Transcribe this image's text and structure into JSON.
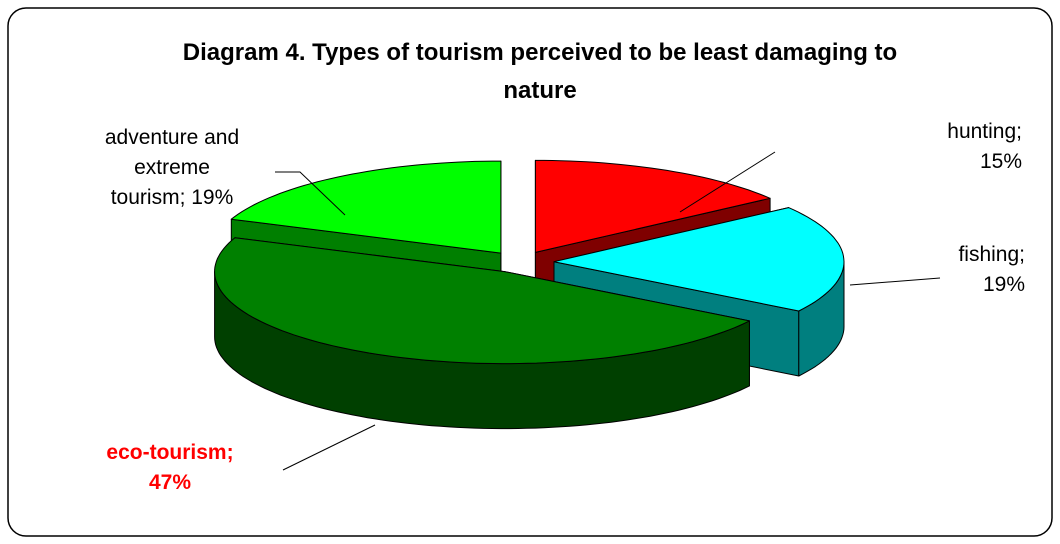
{
  "chart_data": {
    "type": "pie3d",
    "title": "Diagram 4. Types of tourism perceived to be least damaging to nature",
    "categories": [
      "hunting;",
      "fishing;",
      "eco-tourism;",
      "adventure and extreme tourism;"
    ],
    "values": [
      15,
      19,
      47,
      19
    ],
    "value_labels": [
      "15%",
      "19%",
      "47%",
      "19%"
    ],
    "colors": [
      "#ff0000",
      "#00ffff",
      "#008000",
      "#00ff00"
    ]
  }
}
